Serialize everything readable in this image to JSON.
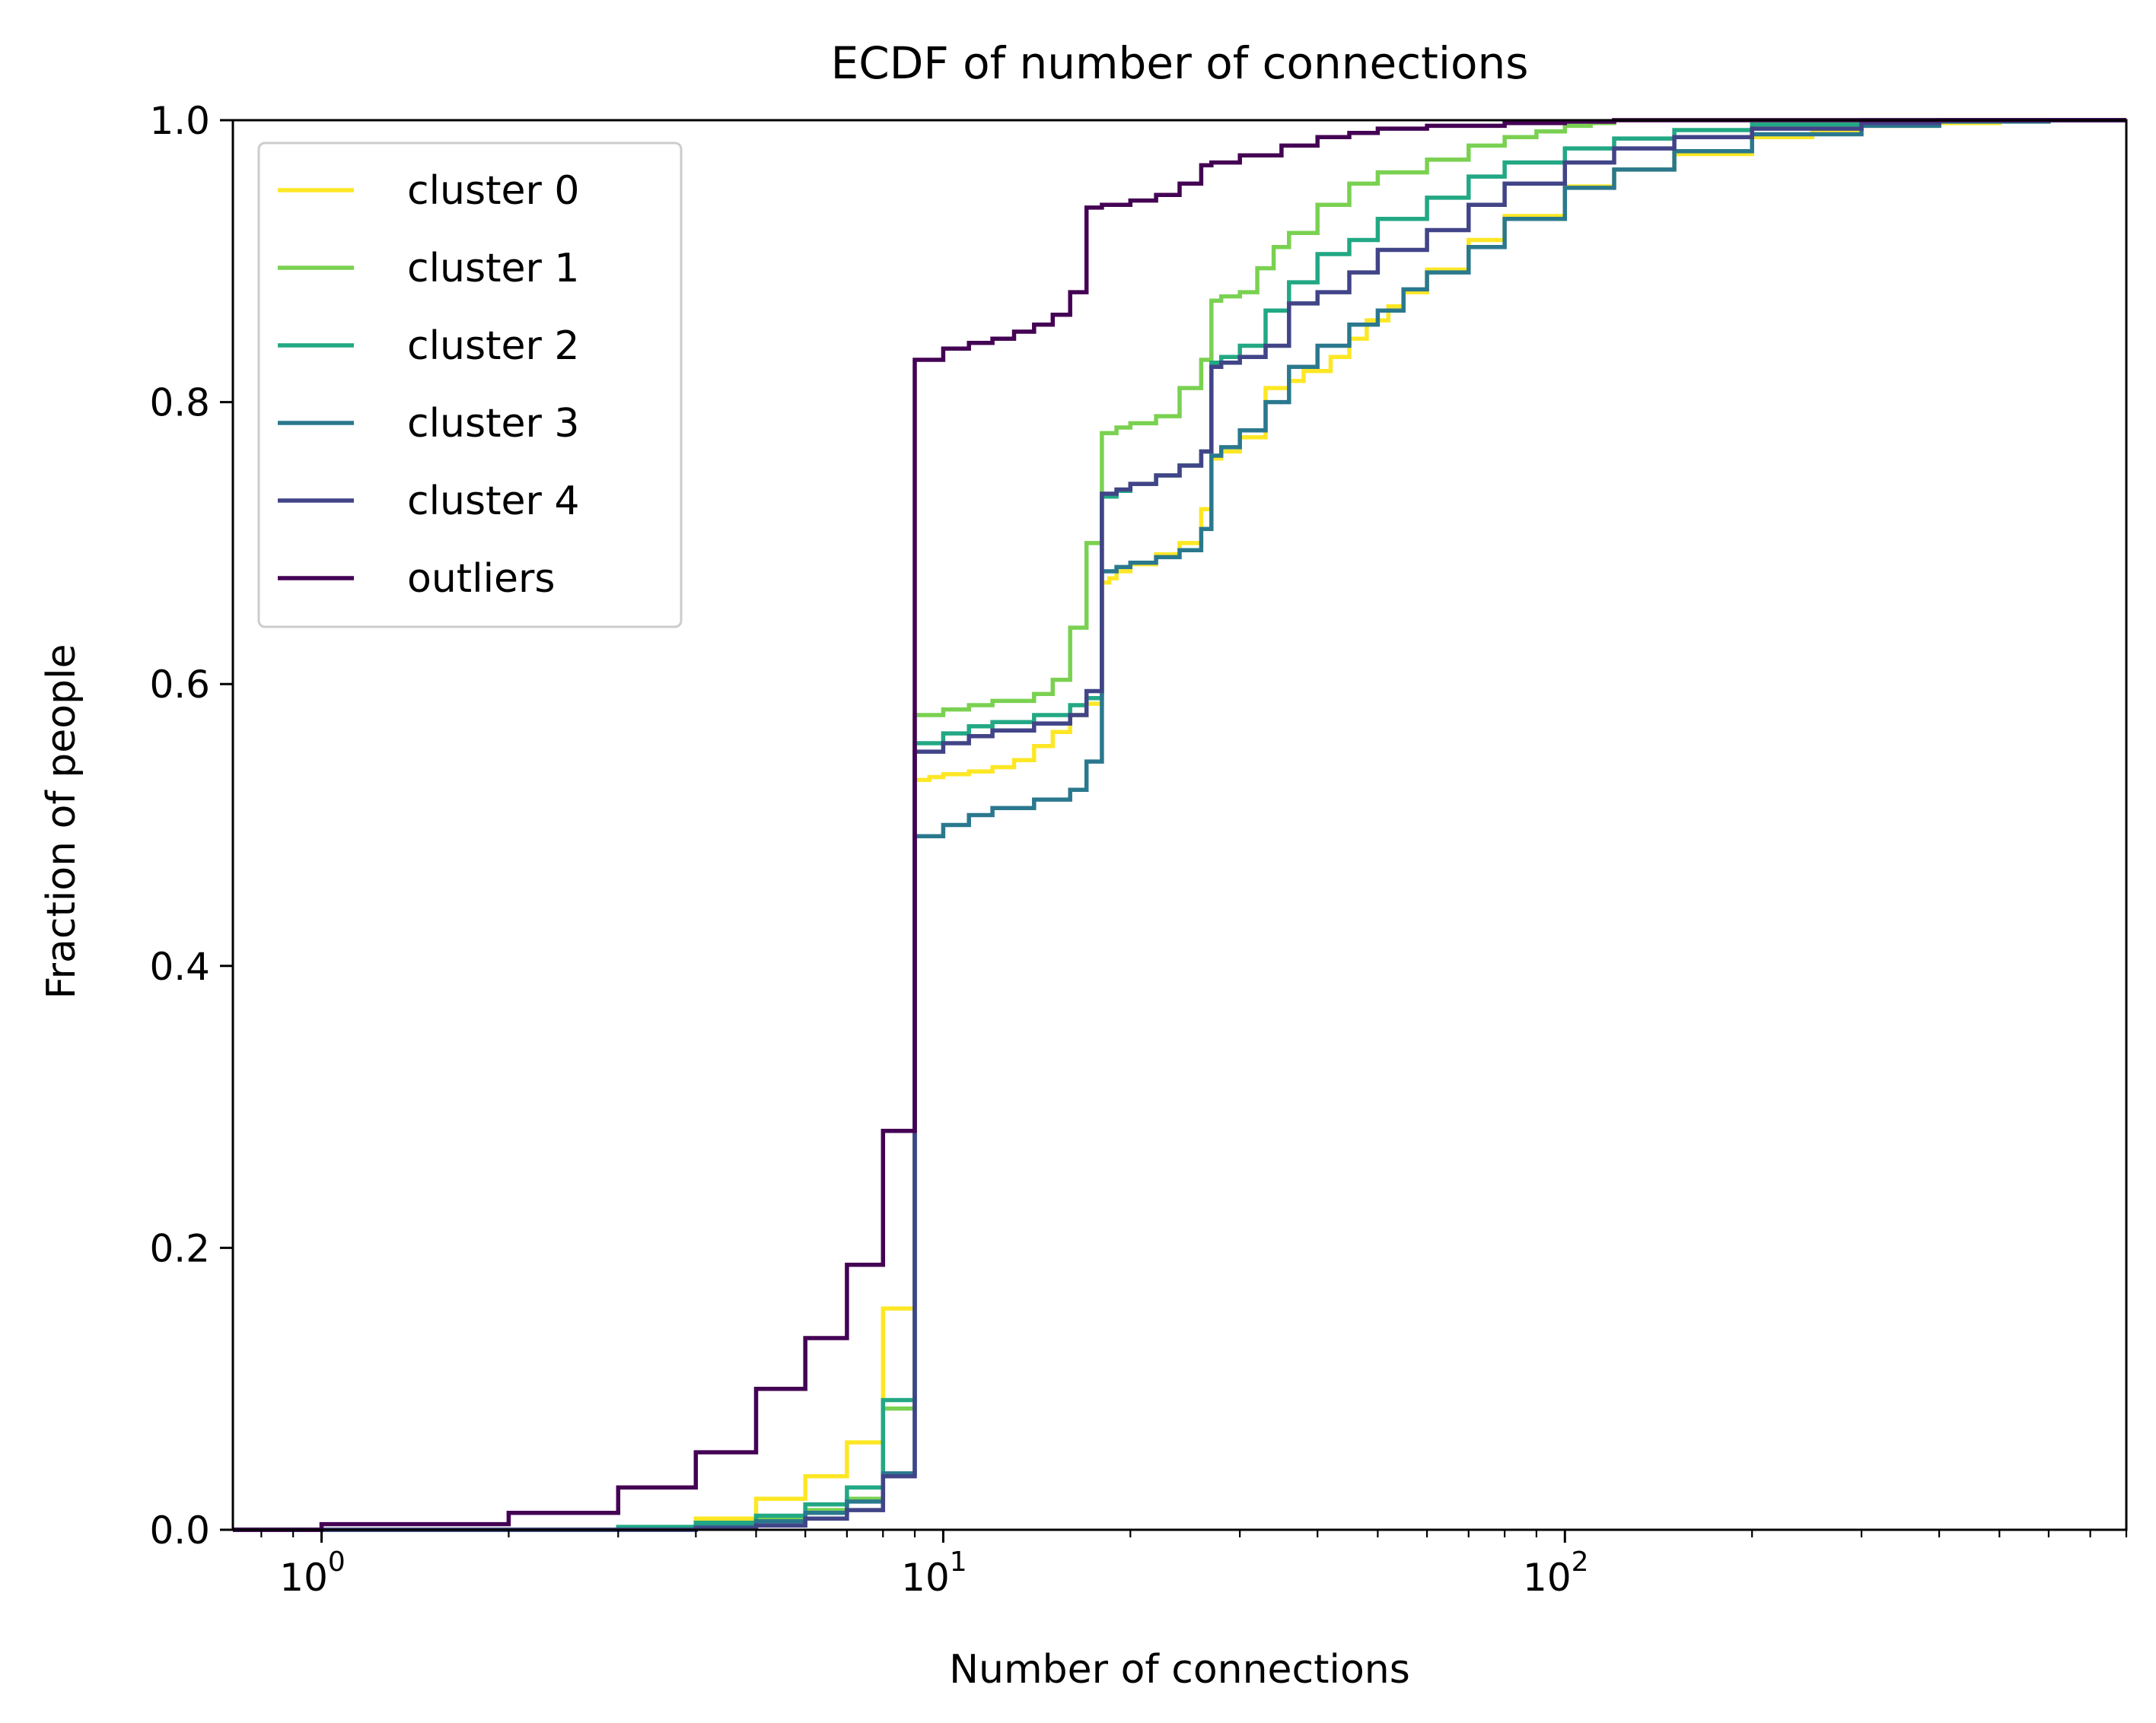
{
  "chart_data": {
    "type": "line",
    "title": "ECDF of number of connections",
    "xlabel": "Number of connections",
    "ylabel": "Fraction of people",
    "xscale": "log",
    "xlim": [
      0.72,
      800
    ],
    "ylim": [
      0,
      1
    ],
    "grid": false,
    "legend_position": "top-left",
    "x_ticks": [
      {
        "value": 1,
        "base": "10",
        "exp": "0"
      },
      {
        "value": 10,
        "base": "10",
        "exp": "1"
      },
      {
        "value": 100,
        "base": "10",
        "exp": "2"
      }
    ],
    "y_ticks": [
      {
        "value": 0,
        "label": "0.0"
      },
      {
        "value": 0.2,
        "label": "0.2"
      },
      {
        "value": 0.4,
        "label": "0.4"
      },
      {
        "value": 0.6,
        "label": "0.6"
      },
      {
        "value": 0.8,
        "label": "0.8"
      },
      {
        "value": 1,
        "label": "1.0"
      }
    ],
    "series": [
      {
        "name": "cluster 0",
        "color": "#fde725",
        "x": [
          3,
          4,
          5,
          6,
          7,
          8,
          9,
          9.5,
          10,
          11,
          12,
          13,
          14,
          15,
          16,
          17,
          18,
          18.5,
          19,
          20,
          22,
          24,
          26,
          27,
          28,
          30,
          33,
          36,
          38,
          42,
          45,
          48,
          52,
          55,
          60,
          70,
          80,
          100,
          120,
          150,
          200,
          250,
          300,
          400,
          500,
          600
        ],
        "y": [
          0.002,
          0.008,
          0.022,
          0.038,
          0.062,
          0.157,
          0.532,
          0.534,
          0.536,
          0.538,
          0.541,
          0.546,
          0.556,
          0.566,
          0.578,
          0.586,
          0.672,
          0.675,
          0.68,
          0.685,
          0.692,
          0.7,
          0.724,
          0.76,
          0.765,
          0.775,
          0.81,
          0.815,
          0.822,
          0.832,
          0.845,
          0.858,
          0.868,
          0.878,
          0.894,
          0.915,
          0.932,
          0.953,
          0.965,
          0.976,
          0.988,
          0.993,
          0.996,
          0.998,
          0.999,
          1.0
        ]
      },
      {
        "name": "cluster 1",
        "color": "#7ad151",
        "x": [
          3,
          4,
          5,
          6,
          7,
          8,
          9,
          10,
          11,
          12,
          14,
          15,
          16,
          17,
          18,
          19,
          20,
          22,
          24,
          26,
          27,
          28,
          30,
          32,
          34,
          36,
          40,
          45,
          50,
          60,
          70,
          80,
          90,
          100,
          110,
          120
        ],
        "y": [
          0.002,
          0.004,
          0.008,
          0.014,
          0.022,
          0.086,
          0.578,
          0.582,
          0.585,
          0.588,
          0.593,
          0.603,
          0.64,
          0.7,
          0.778,
          0.782,
          0.785,
          0.79,
          0.81,
          0.83,
          0.872,
          0.875,
          0.878,
          0.895,
          0.91,
          0.92,
          0.94,
          0.955,
          0.963,
          0.972,
          0.982,
          0.988,
          0.992,
          0.996,
          0.998,
          1.0
        ]
      },
      {
        "name": "cluster 2",
        "color": "#22a884",
        "x": [
          3,
          4,
          5,
          6,
          7,
          8,
          9,
          10,
          11,
          12,
          14,
          16,
          17,
          18,
          19,
          20,
          22,
          24,
          26,
          27,
          28,
          30,
          33,
          36,
          40,
          45,
          50,
          60,
          70,
          80,
          100,
          120,
          150,
          200,
          300
        ],
        "y": [
          0.002,
          0.005,
          0.01,
          0.018,
          0.03,
          0.092,
          0.558,
          0.565,
          0.57,
          0.573,
          0.578,
          0.585,
          0.59,
          0.733,
          0.737,
          0.742,
          0.748,
          0.755,
          0.765,
          0.828,
          0.832,
          0.84,
          0.865,
          0.885,
          0.905,
          0.915,
          0.93,
          0.945,
          0.96,
          0.97,
          0.98,
          0.987,
          0.993,
          0.997,
          1.0
        ]
      },
      {
        "name": "cluster 3",
        "color": "#2a788e",
        "x": [
          4,
          5,
          6,
          7,
          8,
          9,
          10,
          11,
          12,
          14,
          16,
          17,
          18,
          19,
          20,
          22,
          24,
          26,
          27,
          28,
          30,
          33,
          36,
          40,
          45,
          50,
          55,
          60,
          70,
          80,
          100,
          120,
          150,
          200,
          300,
          400,
          600
        ],
        "y": [
          0.002,
          0.006,
          0.012,
          0.02,
          0.04,
          0.492,
          0.5,
          0.507,
          0.512,
          0.518,
          0.525,
          0.545,
          0.68,
          0.683,
          0.686,
          0.69,
          0.695,
          0.71,
          0.762,
          0.768,
          0.78,
          0.8,
          0.825,
          0.84,
          0.855,
          0.865,
          0.88,
          0.892,
          0.91,
          0.93,
          0.952,
          0.965,
          0.978,
          0.99,
          0.996,
          0.999,
          1.0
        ]
      },
      {
        "name": "cluster 4",
        "color": "#414487",
        "x": [
          4,
          5,
          6,
          7,
          8,
          9,
          10,
          11,
          12,
          14,
          16,
          17,
          18,
          19,
          20,
          22,
          24,
          26,
          27,
          28,
          30,
          33,
          36,
          40,
          45,
          50,
          60,
          70,
          80,
          100,
          120,
          150,
          200,
          300,
          400
        ],
        "y": [
          0.001,
          0.003,
          0.008,
          0.014,
          0.038,
          0.552,
          0.558,
          0.563,
          0.567,
          0.572,
          0.578,
          0.595,
          0.735,
          0.738,
          0.742,
          0.748,
          0.755,
          0.765,
          0.825,
          0.828,
          0.832,
          0.84,
          0.87,
          0.878,
          0.892,
          0.908,
          0.922,
          0.94,
          0.955,
          0.97,
          0.98,
          0.988,
          0.994,
          0.998,
          1.0
        ]
      },
      {
        "name": "outliers",
        "color": "#440154",
        "x": [
          1,
          2,
          3,
          4,
          5,
          6,
          7,
          8,
          9,
          10,
          11,
          12,
          13,
          14,
          15,
          16,
          17,
          18,
          20,
          22,
          24,
          26,
          27,
          30,
          35,
          40,
          45,
          50,
          60,
          80,
          100,
          120
        ],
        "y": [
          0.004,
          0.012,
          0.03,
          0.055,
          0.1,
          0.136,
          0.188,
          0.283,
          0.83,
          0.838,
          0.842,
          0.845,
          0.85,
          0.855,
          0.862,
          0.878,
          0.938,
          0.94,
          0.943,
          0.947,
          0.955,
          0.968,
          0.97,
          0.975,
          0.982,
          0.988,
          0.991,
          0.994,
          0.996,
          0.998,
          0.999,
          1.0
        ]
      }
    ]
  }
}
